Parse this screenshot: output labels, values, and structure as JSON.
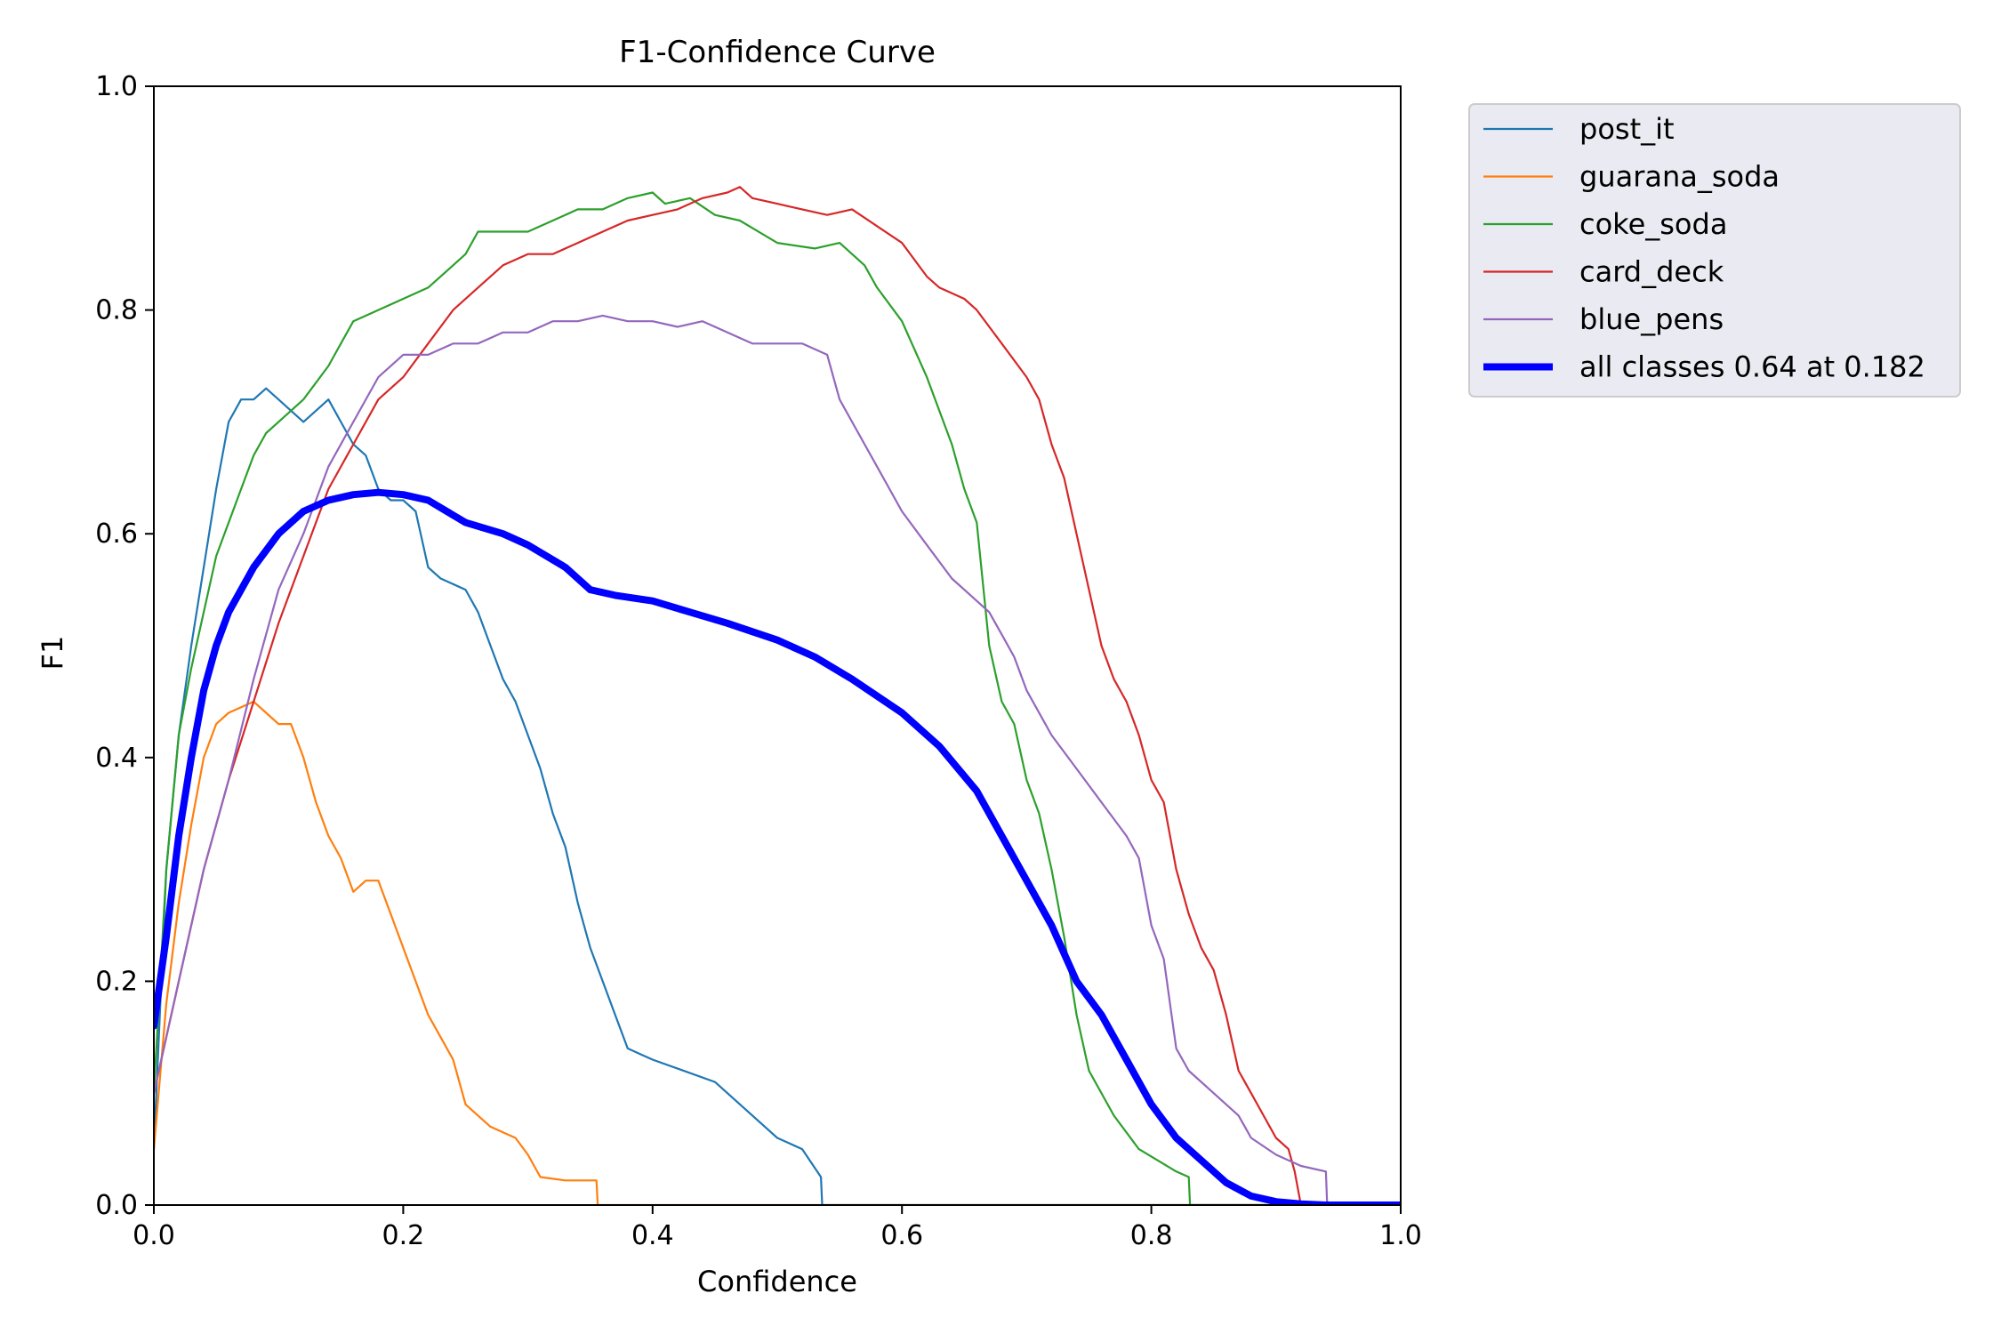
{
  "chart_data": {
    "type": "line",
    "title": "F1-Confidence Curve",
    "xlabel": "Confidence",
    "ylabel": "F1",
    "xlim": [
      0.0,
      1.0
    ],
    "ylim": [
      0.0,
      1.0
    ],
    "xticks": [
      "0.0",
      "0.2",
      "0.4",
      "0.6",
      "0.8",
      "1.0"
    ],
    "yticks": [
      "0.0",
      "0.2",
      "0.4",
      "0.6",
      "0.8",
      "1.0"
    ],
    "grid": false,
    "legend_position": "outside-upper-right",
    "series": [
      {
        "name": "post_it",
        "color": "#1f77b4",
        "x": [
          0.0,
          0.01,
          0.02,
          0.03,
          0.04,
          0.05,
          0.06,
          0.07,
          0.08,
          0.09,
          0.1,
          0.11,
          0.12,
          0.13,
          0.14,
          0.15,
          0.16,
          0.17,
          0.18,
          0.19,
          0.2,
          0.21,
          0.22,
          0.23,
          0.25,
          0.26,
          0.27,
          0.28,
          0.29,
          0.3,
          0.31,
          0.32,
          0.33,
          0.34,
          0.35,
          0.36,
          0.37,
          0.38,
          0.39,
          0.4,
          0.45,
          0.5,
          0.52,
          0.535,
          0.536,
          1.0
        ],
        "y": [
          0.05,
          0.3,
          0.42,
          0.5,
          0.57,
          0.64,
          0.7,
          0.72,
          0.72,
          0.73,
          0.72,
          0.71,
          0.7,
          0.71,
          0.72,
          0.7,
          0.68,
          0.67,
          0.64,
          0.63,
          0.63,
          0.62,
          0.57,
          0.56,
          0.55,
          0.53,
          0.5,
          0.47,
          0.45,
          0.42,
          0.39,
          0.35,
          0.32,
          0.27,
          0.23,
          0.2,
          0.17,
          0.14,
          0.135,
          0.13,
          0.11,
          0.06,
          0.05,
          0.025,
          0.0,
          0.0
        ]
      },
      {
        "name": "guarana_soda",
        "color": "#ff7f0e",
        "x": [
          0.0,
          0.01,
          0.02,
          0.03,
          0.04,
          0.05,
          0.06,
          0.07,
          0.08,
          0.09,
          0.1,
          0.11,
          0.12,
          0.13,
          0.14,
          0.15,
          0.16,
          0.17,
          0.18,
          0.19,
          0.2,
          0.21,
          0.22,
          0.23,
          0.24,
          0.25,
          0.26,
          0.27,
          0.28,
          0.29,
          0.3,
          0.31,
          0.33,
          0.35,
          0.355,
          0.356,
          1.0
        ],
        "y": [
          0.05,
          0.18,
          0.27,
          0.34,
          0.4,
          0.43,
          0.44,
          0.445,
          0.45,
          0.44,
          0.43,
          0.43,
          0.4,
          0.36,
          0.33,
          0.31,
          0.28,
          0.29,
          0.29,
          0.26,
          0.23,
          0.2,
          0.17,
          0.15,
          0.13,
          0.09,
          0.08,
          0.07,
          0.065,
          0.06,
          0.045,
          0.025,
          0.022,
          0.022,
          0.022,
          0.0,
          0.0
        ]
      },
      {
        "name": "coke_soda",
        "color": "#2ca02c",
        "x": [
          0.0,
          0.01,
          0.02,
          0.03,
          0.04,
          0.05,
          0.06,
          0.07,
          0.08,
          0.09,
          0.1,
          0.12,
          0.14,
          0.15,
          0.16,
          0.18,
          0.2,
          0.22,
          0.24,
          0.25,
          0.26,
          0.27,
          0.28,
          0.3,
          0.32,
          0.34,
          0.36,
          0.38,
          0.4,
          0.41,
          0.43,
          0.45,
          0.47,
          0.5,
          0.53,
          0.55,
          0.57,
          0.58,
          0.6,
          0.62,
          0.64,
          0.65,
          0.66,
          0.67,
          0.68,
          0.69,
          0.7,
          0.71,
          0.72,
          0.73,
          0.74,
          0.75,
          0.77,
          0.79,
          0.82,
          0.83,
          0.831,
          1.0
        ],
        "y": [
          0.1,
          0.3,
          0.42,
          0.48,
          0.53,
          0.58,
          0.61,
          0.64,
          0.67,
          0.69,
          0.7,
          0.72,
          0.75,
          0.77,
          0.79,
          0.8,
          0.81,
          0.82,
          0.84,
          0.85,
          0.87,
          0.87,
          0.87,
          0.87,
          0.88,
          0.89,
          0.89,
          0.9,
          0.905,
          0.895,
          0.9,
          0.885,
          0.88,
          0.86,
          0.855,
          0.86,
          0.84,
          0.82,
          0.79,
          0.74,
          0.68,
          0.64,
          0.61,
          0.5,
          0.45,
          0.43,
          0.38,
          0.35,
          0.3,
          0.24,
          0.17,
          0.12,
          0.08,
          0.05,
          0.03,
          0.025,
          0.0,
          0.0
        ]
      },
      {
        "name": "card_deck",
        "color": "#d62728",
        "x": [
          0.0,
          0.02,
          0.04,
          0.06,
          0.08,
          0.1,
          0.12,
          0.14,
          0.16,
          0.18,
          0.2,
          0.22,
          0.24,
          0.26,
          0.28,
          0.3,
          0.32,
          0.34,
          0.36,
          0.38,
          0.4,
          0.42,
          0.44,
          0.46,
          0.47,
          0.48,
          0.5,
          0.52,
          0.54,
          0.56,
          0.58,
          0.6,
          0.62,
          0.63,
          0.65,
          0.66,
          0.68,
          0.7,
          0.71,
          0.72,
          0.73,
          0.74,
          0.75,
          0.76,
          0.77,
          0.78,
          0.79,
          0.8,
          0.81,
          0.82,
          0.83,
          0.84,
          0.85,
          0.86,
          0.87,
          0.88,
          0.89,
          0.9,
          0.91,
          0.915,
          0.92,
          1.0
        ],
        "y": [
          0.1,
          0.2,
          0.3,
          0.38,
          0.45,
          0.52,
          0.58,
          0.64,
          0.68,
          0.72,
          0.74,
          0.77,
          0.8,
          0.82,
          0.84,
          0.85,
          0.85,
          0.86,
          0.87,
          0.88,
          0.885,
          0.89,
          0.9,
          0.905,
          0.91,
          0.9,
          0.895,
          0.89,
          0.885,
          0.89,
          0.875,
          0.86,
          0.83,
          0.82,
          0.81,
          0.8,
          0.77,
          0.74,
          0.72,
          0.68,
          0.65,
          0.6,
          0.55,
          0.5,
          0.47,
          0.45,
          0.42,
          0.38,
          0.36,
          0.3,
          0.26,
          0.23,
          0.21,
          0.17,
          0.12,
          0.1,
          0.08,
          0.06,
          0.05,
          0.03,
          0.0,
          0.0
        ]
      },
      {
        "name": "blue_pens",
        "color": "#9467bd",
        "x": [
          0.0,
          0.02,
          0.04,
          0.06,
          0.08,
          0.1,
          0.12,
          0.14,
          0.16,
          0.18,
          0.2,
          0.22,
          0.24,
          0.26,
          0.28,
          0.3,
          0.32,
          0.34,
          0.36,
          0.38,
          0.4,
          0.42,
          0.44,
          0.46,
          0.48,
          0.5,
          0.52,
          0.54,
          0.55,
          0.56,
          0.58,
          0.6,
          0.62,
          0.64,
          0.65,
          0.66,
          0.67,
          0.68,
          0.69,
          0.7,
          0.72,
          0.74,
          0.76,
          0.78,
          0.79,
          0.8,
          0.81,
          0.82,
          0.83,
          0.85,
          0.87,
          0.88,
          0.9,
          0.92,
          0.94,
          0.941,
          1.0
        ],
        "y": [
          0.1,
          0.2,
          0.3,
          0.38,
          0.47,
          0.55,
          0.6,
          0.66,
          0.7,
          0.74,
          0.76,
          0.76,
          0.77,
          0.77,
          0.78,
          0.78,
          0.79,
          0.79,
          0.795,
          0.79,
          0.79,
          0.785,
          0.79,
          0.78,
          0.77,
          0.77,
          0.77,
          0.76,
          0.72,
          0.7,
          0.66,
          0.62,
          0.59,
          0.56,
          0.55,
          0.54,
          0.53,
          0.51,
          0.49,
          0.46,
          0.42,
          0.39,
          0.36,
          0.33,
          0.31,
          0.25,
          0.22,
          0.14,
          0.12,
          0.1,
          0.08,
          0.06,
          0.045,
          0.035,
          0.03,
          0.0,
          0.0
        ]
      },
      {
        "name": "all classes 0.64 at 0.182",
        "color": "#0000ff",
        "thick": true,
        "x": [
          0.0,
          0.01,
          0.02,
          0.03,
          0.04,
          0.05,
          0.06,
          0.08,
          0.1,
          0.12,
          0.14,
          0.16,
          0.18,
          0.2,
          0.22,
          0.25,
          0.28,
          0.3,
          0.33,
          0.35,
          0.37,
          0.4,
          0.43,
          0.46,
          0.5,
          0.53,
          0.56,
          0.6,
          0.63,
          0.66,
          0.68,
          0.7,
          0.72,
          0.74,
          0.76,
          0.78,
          0.8,
          0.82,
          0.84,
          0.86,
          0.88,
          0.9,
          0.92,
          0.94,
          0.96,
          0.98,
          1.0
        ],
        "y": [
          0.16,
          0.24,
          0.33,
          0.4,
          0.46,
          0.5,
          0.53,
          0.57,
          0.6,
          0.62,
          0.63,
          0.635,
          0.637,
          0.635,
          0.63,
          0.61,
          0.6,
          0.59,
          0.57,
          0.55,
          0.545,
          0.54,
          0.53,
          0.52,
          0.505,
          0.49,
          0.47,
          0.44,
          0.41,
          0.37,
          0.33,
          0.29,
          0.25,
          0.2,
          0.17,
          0.13,
          0.09,
          0.06,
          0.04,
          0.02,
          0.008,
          0.003,
          0.001,
          0.0,
          0.0,
          0.0,
          0.0
        ]
      }
    ]
  }
}
